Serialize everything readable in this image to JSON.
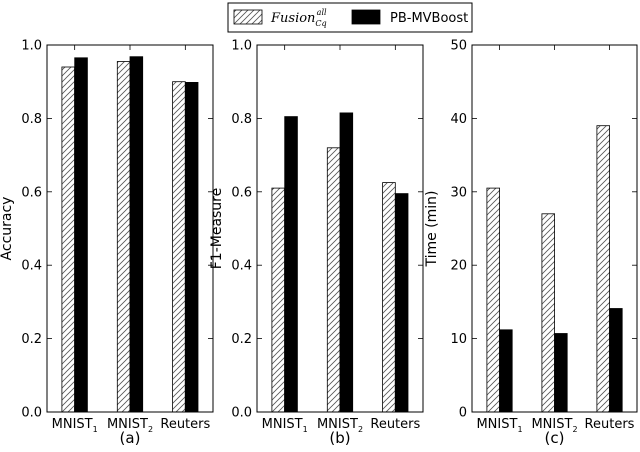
{
  "legend": {
    "items": [
      {
        "label": "Fusion",
        "sup": "all",
        "sub": "Cq",
        "pattern": "hatch",
        "color": "#ffffff"
      },
      {
        "label": "PB-MVBoost",
        "pattern": "solid",
        "color": "#000000"
      }
    ]
  },
  "chart_data": [
    {
      "type": "bar",
      "panel_label": "(a)",
      "ylabel": "Accuracy",
      "ylim": [
        0,
        1.0
      ],
      "yticks": [
        "0.0",
        "0.2",
        "0.4",
        "0.6",
        "0.8",
        "1.0"
      ],
      "yticks_values": [
        0,
        0.2,
        0.4,
        0.6,
        0.8,
        1.0
      ],
      "categories": [
        {
          "base": "MNIST",
          "sub": "1"
        },
        {
          "base": "MNIST",
          "sub": "2"
        },
        {
          "base": "Reuters",
          "sub": ""
        }
      ],
      "series": [
        {
          "name": "Fusion_Cq^all",
          "values": [
            0.94,
            0.955,
            0.9
          ]
        },
        {
          "name": "PB-MVBoost",
          "values": [
            0.965,
            0.968,
            0.898
          ]
        }
      ]
    },
    {
      "type": "bar",
      "panel_label": "(b)",
      "ylabel": "F1-Measure",
      "ylim": [
        0,
        1.0
      ],
      "yticks": [
        "0.0",
        "0.2",
        "0.4",
        "0.6",
        "0.8",
        "1.0"
      ],
      "yticks_values": [
        0,
        0.2,
        0.4,
        0.6,
        0.8,
        1.0
      ],
      "categories": [
        {
          "base": "MNIST",
          "sub": "1"
        },
        {
          "base": "MNIST",
          "sub": "2"
        },
        {
          "base": "Reuters",
          "sub": ""
        }
      ],
      "series": [
        {
          "name": "Fusion_Cq^all",
          "values": [
            0.61,
            0.72,
            0.625
          ]
        },
        {
          "name": "PB-MVBoost",
          "values": [
            0.805,
            0.815,
            0.595
          ]
        }
      ]
    },
    {
      "type": "bar",
      "panel_label": "(c)",
      "ylabel": "Time (min)",
      "ylim": [
        0,
        50
      ],
      "yticks": [
        "0",
        "10",
        "20",
        "30",
        "40",
        "50"
      ],
      "yticks_values": [
        0,
        10,
        20,
        30,
        40,
        50
      ],
      "categories": [
        {
          "base": "MNIST",
          "sub": "1"
        },
        {
          "base": "MNIST",
          "sub": "2"
        },
        {
          "base": "Reuters",
          "sub": ""
        }
      ],
      "series": [
        {
          "name": "Fusion_Cq^all",
          "values": [
            30.5,
            27.0,
            39.0
          ]
        },
        {
          "name": "PB-MVBoost",
          "values": [
            11.2,
            10.7,
            14.1
          ]
        }
      ]
    }
  ]
}
